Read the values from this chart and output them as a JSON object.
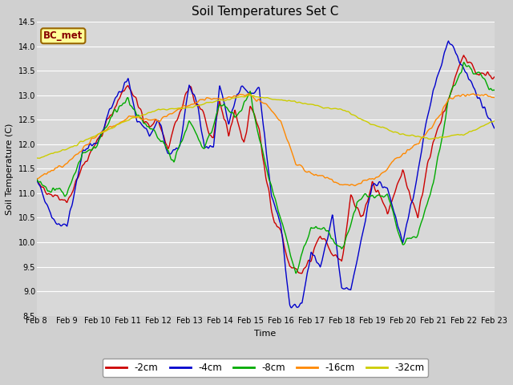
{
  "title": "Soil Temperatures Set C",
  "xlabel": "Time",
  "ylabel": "Soil Temperature (C)",
  "ylim": [
    8.5,
    14.5
  ],
  "x_labels": [
    "Feb 8",
    "Feb 9",
    "Feb 10",
    "Feb 11",
    "Feb 12",
    "Feb 13",
    "Feb 14",
    "Feb 15",
    "Feb 16",
    "Feb 17",
    "Feb 18",
    "Feb 19",
    "Feb 20",
    "Feb 21",
    "Feb 22",
    "Feb 23"
  ],
  "legend_labels": [
    "-2cm",
    "-4cm",
    "-8cm",
    "-16cm",
    "-32cm"
  ],
  "legend_colors": [
    "#cc0000",
    "#0000cc",
    "#00aa00",
    "#ff8800",
    "#cccc00"
  ],
  "annotation_text": "BC_met",
  "annotation_bg": "#ffff99",
  "annotation_border": "#996600",
  "fig_bg": "#d0d0d0",
  "plot_bg": "#d8d8d8",
  "grid_color": "#ffffff",
  "title_fontsize": 11,
  "axis_fontsize": 8,
  "tick_fontsize": 7
}
